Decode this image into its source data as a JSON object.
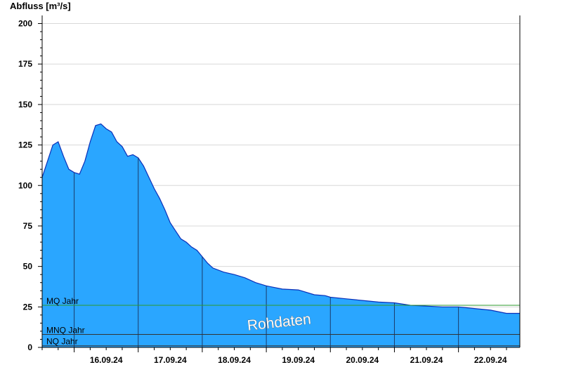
{
  "chart_data": {
    "type": "area",
    "ylabel": "Abfluss [m³/s]",
    "xlabel": "",
    "ylim": [
      0,
      205
    ],
    "yticks": [
      0,
      25,
      50,
      75,
      100,
      125,
      150,
      175,
      200
    ],
    "xlim_days": [
      "15.09.24 12:00",
      "22.09.24 23:00"
    ],
    "day_boundaries": [
      "16.09.24 00:00",
      "17.09.24 00:00",
      "18.09.24 00:00",
      "19.09.24 00:00",
      "20.09.24 00:00",
      "21.09.24 00:00",
      "22.09.24 00:00"
    ],
    "xtick_labels": [
      "16.09.24",
      "17.09.24",
      "18.09.24",
      "19.09.24",
      "20.09.24",
      "21.09.24",
      "22.09.24"
    ],
    "grid": true,
    "series": [
      {
        "name": "",
        "color": "#2aa6ff",
        "x": [
          "15.09.24 12:00",
          "15.09.24 14:00",
          "15.09.24 16:00",
          "15.09.24 18:00",
          "15.09.24 20:00",
          "15.09.24 22:00",
          "16.09.24 00:00",
          "16.09.24 02:00",
          "16.09.24 04:00",
          "16.09.24 06:00",
          "16.09.24 08:00",
          "16.09.24 10:00",
          "16.09.24 12:00",
          "16.09.24 14:00",
          "16.09.24 16:00",
          "16.09.24 18:00",
          "16.09.24 20:00",
          "16.09.24 22:00",
          "17.09.24 00:00",
          "17.09.24 02:00",
          "17.09.24 04:00",
          "17.09.24 06:00",
          "17.09.24 08:00",
          "17.09.24 10:00",
          "17.09.24 12:00",
          "17.09.24 14:00",
          "17.09.24 16:00",
          "17.09.24 18:00",
          "17.09.24 20:00",
          "17.09.24 22:00",
          "18.09.24 00:00",
          "18.09.24 02:00",
          "18.09.24 04:00",
          "18.09.24 08:00",
          "18.09.24 12:00",
          "18.09.24 16:00",
          "18.09.24 20:00",
          "19.09.24 00:00",
          "19.09.24 06:00",
          "19.09.24 12:00",
          "19.09.24 18:00",
          "19.09.24 22:00",
          "20.09.24 00:00",
          "20.09.24 06:00",
          "20.09.24 12:00",
          "20.09.24 18:00",
          "21.09.24 00:00",
          "21.09.24 06:00",
          "21.09.24 12:00",
          "21.09.24 18:00",
          "22.09.24 00:00",
          "22.09.24 06:00",
          "22.09.24 12:00",
          "22.09.24 18:00",
          "22.09.24 23:00"
        ],
        "values": [
          105,
          115,
          125,
          127,
          118,
          110,
          108,
          107,
          115,
          127,
          137,
          138,
          135,
          133,
          127,
          124,
          118,
          119,
          117,
          112,
          105,
          98,
          92,
          85,
          77,
          72,
          67,
          65,
          62,
          60,
          56,
          52,
          49,
          46.5,
          45,
          43,
          40,
          38,
          36,
          35.5,
          32.5,
          32,
          31,
          30,
          29,
          28,
          27.5,
          26,
          25.5,
          25,
          25,
          24,
          23,
          21,
          21
        ]
      }
    ],
    "reference_lines": [
      {
        "name": "MQ Jahr",
        "value": 26,
        "color": "#2e9a2e"
      },
      {
        "name": "MNQ Jahr",
        "value": 8,
        "color": "#333333"
      },
      {
        "name": "NQ Jahr",
        "value": 1,
        "color": "#333333"
      }
    ],
    "annotations": [
      "Rohdaten"
    ]
  }
}
